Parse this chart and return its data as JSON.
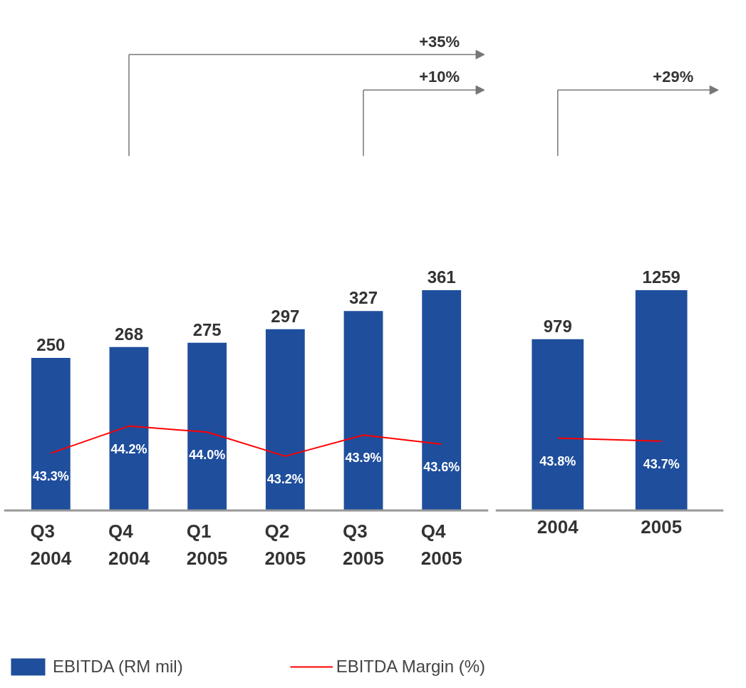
{
  "chart_data": [
    {
      "type": "bar",
      "categories": [
        "Q3\n2004",
        "Q4\n2004",
        "Q1\n2005",
        "Q2\n2005",
        "Q3\n2005",
        "Q4\n2005"
      ],
      "series": [
        {
          "name": "EBITDA (RM mil)",
          "color": "#1f4e9c",
          "values": [
            250,
            268,
            275,
            297,
            327,
            361
          ]
        },
        {
          "name": "EBITDA Margin (%)",
          "type": "line",
          "axis": "y2",
          "color": "#ff0000",
          "values": [
            43.3,
            44.2,
            44.0,
            43.2,
            43.9,
            43.6
          ],
          "value_labels": [
            "43.3%",
            "44.2%",
            "44.0%",
            "43.2%",
            "43.9%",
            "43.6%"
          ]
        }
      ],
      "tick_labels": "x",
      "data_labels": true,
      "legend": "bottom",
      "grid": false,
      "annotations": [
        "+35%",
        "+10%"
      ]
    },
    {
      "type": "bar",
      "categories": [
        "2004",
        "2005"
      ],
      "series": [
        {
          "color": "#1f4e9c",
          "values": [
            979,
            1259
          ]
        },
        {
          "type": "line",
          "axis": "y2",
          "color": "#ff0000",
          "values": [
            43.8,
            43.7
          ],
          "value_labels": [
            "43.8%",
            "43.7%"
          ]
        }
      ],
      "tick_labels": "x",
      "data_labels": true,
      "grid": false,
      "annotations": [
        "+29%"
      ]
    }
  ]
}
